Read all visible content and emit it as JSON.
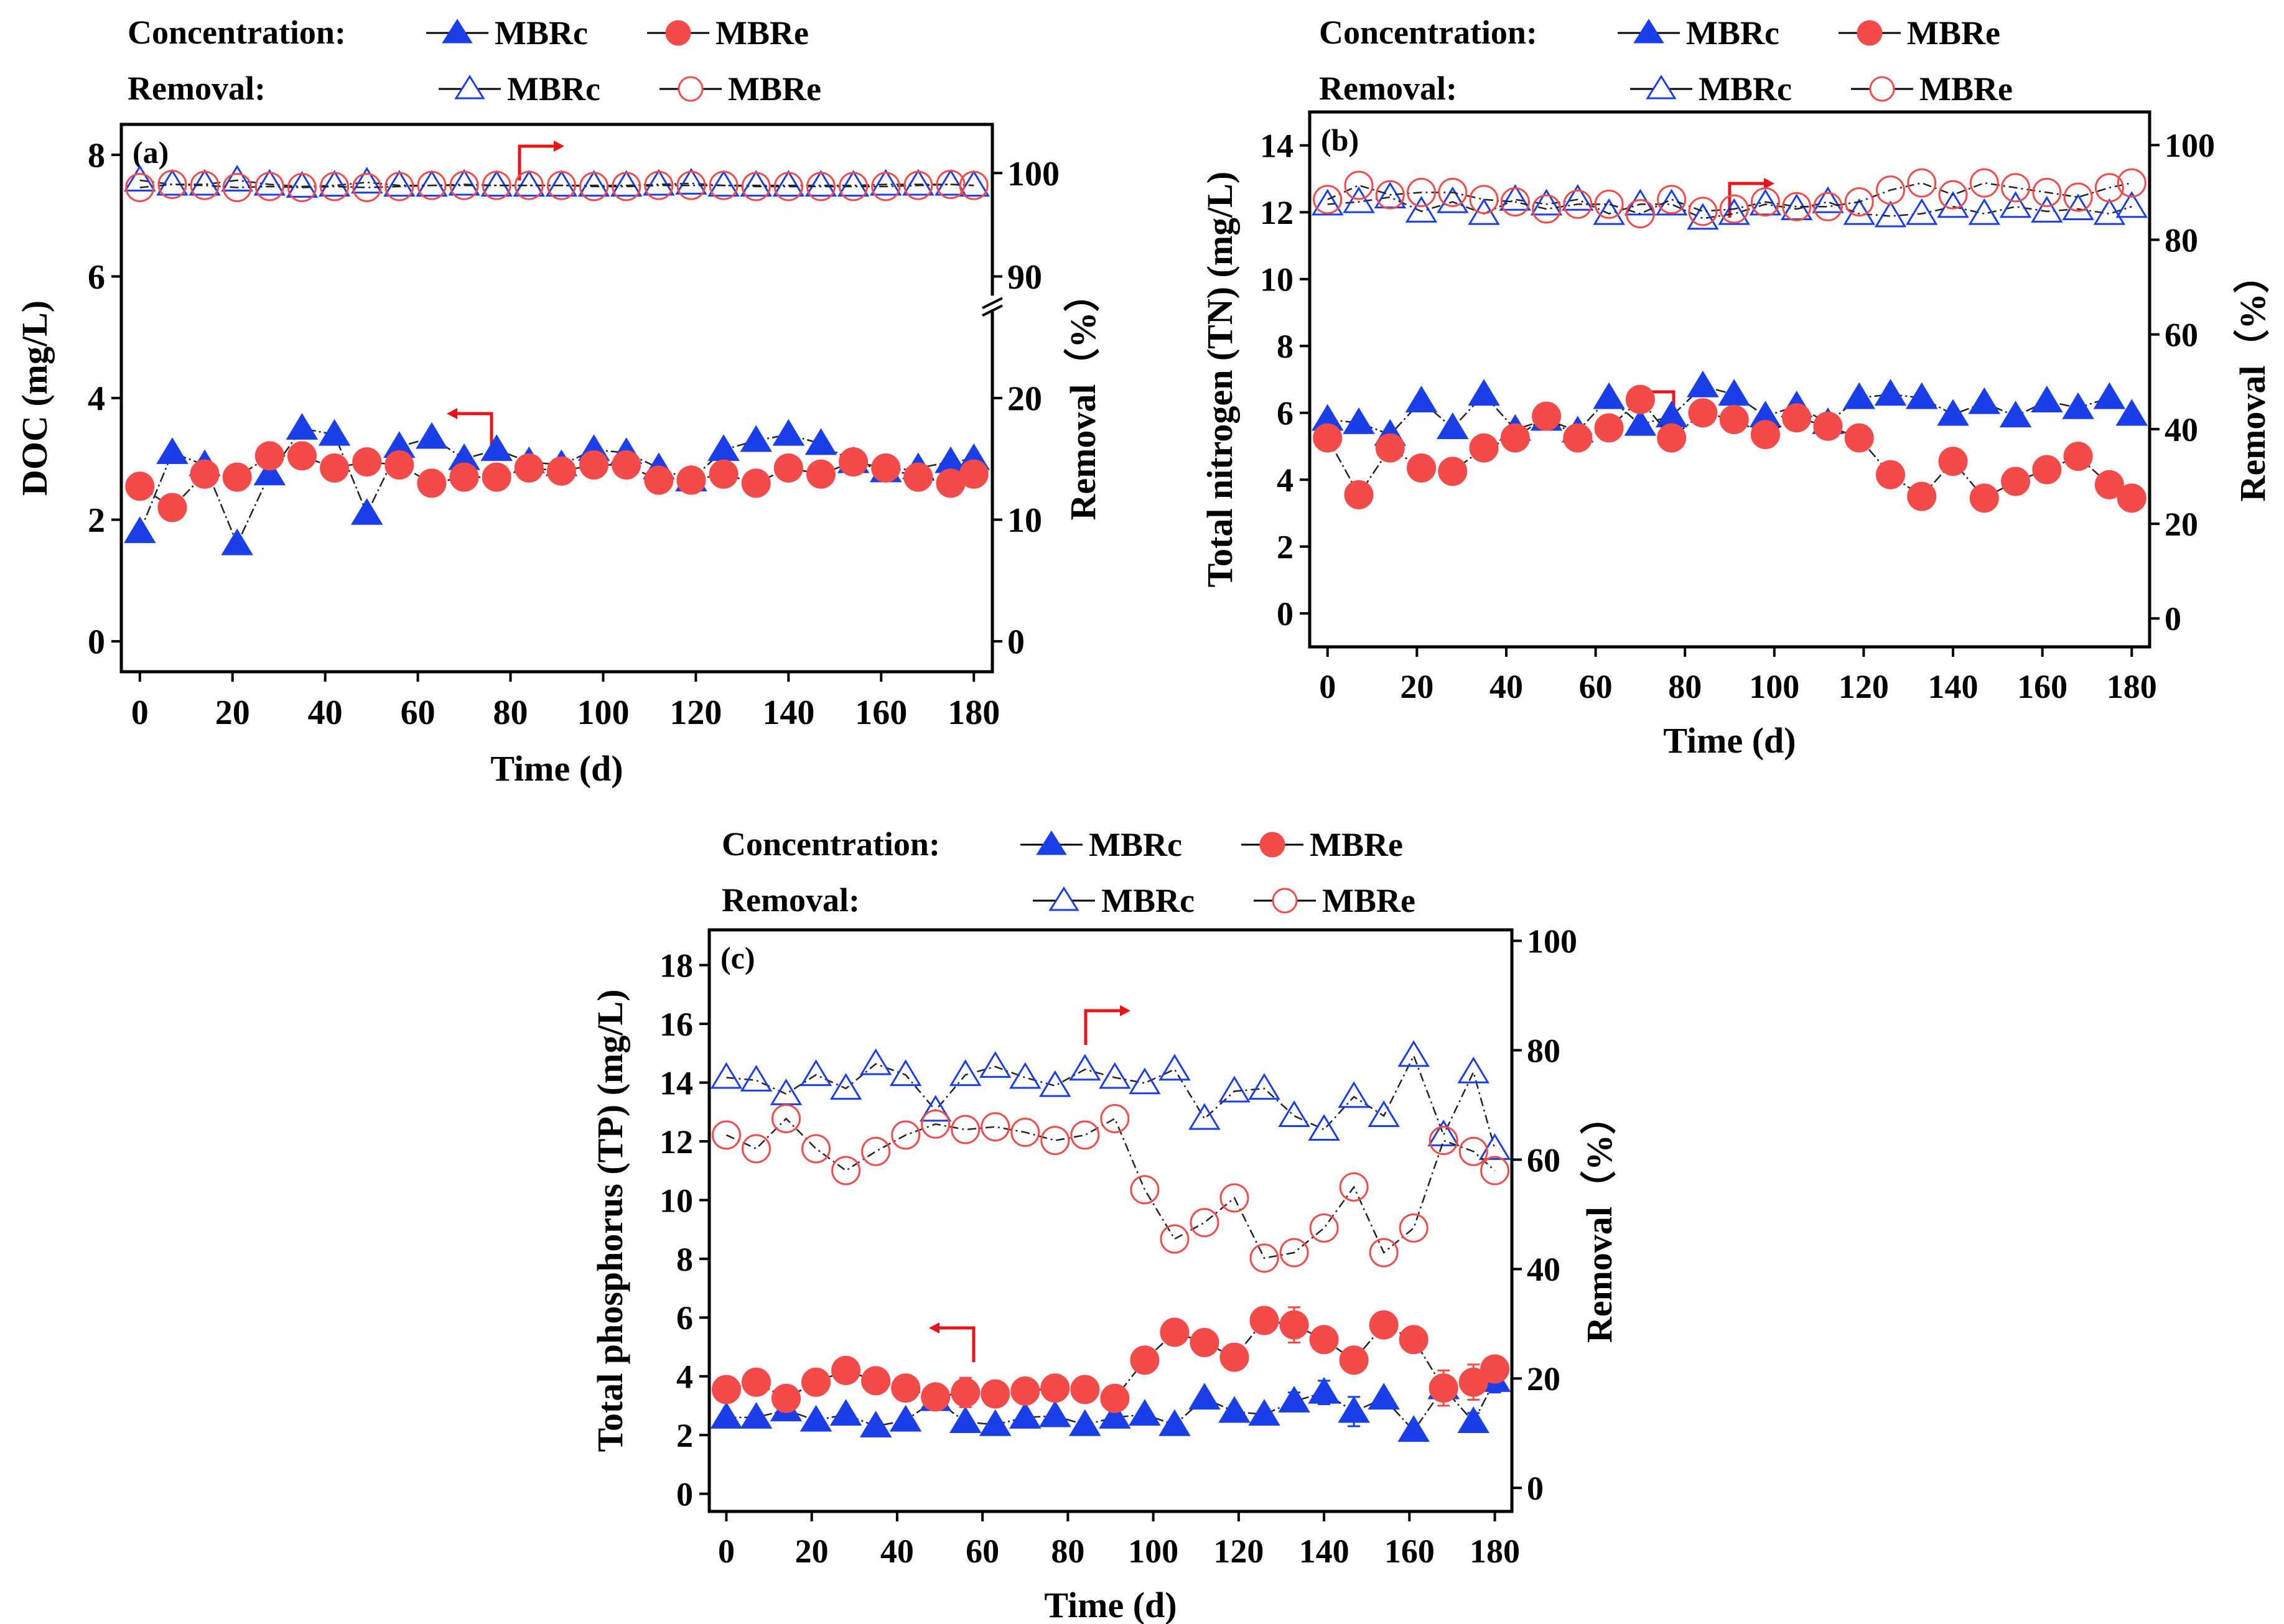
{
  "chart_data": [
    {
      "type": "line",
      "panel_label": "(a)",
      "xlabel": "Time (d)",
      "ylabel": "DOC (mg/L)",
      "y2label": "Removal（%）",
      "x_ticks": [
        0,
        20,
        40,
        60,
        80,
        100,
        120,
        140,
        160,
        180
      ],
      "xlim": [
        -4,
        184
      ],
      "y_ticks": [
        0,
        2,
        4,
        6,
        8
      ],
      "ylim": [
        -0.5,
        8.5
      ],
      "y2_broken": true,
      "y2_ticks_lower": [
        0,
        10,
        20
      ],
      "y2_ticks_upper": [
        90,
        100
      ],
      "legend": {
        "concentration_label": "Concentration:",
        "removal_label": "Removal:",
        "entries": [
          "MBRc",
          "MBRe"
        ]
      },
      "x": [
        0,
        7,
        14,
        21,
        28,
        35,
        42,
        49,
        56,
        63,
        70,
        77,
        84,
        91,
        98,
        105,
        112,
        119,
        126,
        133,
        140,
        147,
        154,
        161,
        168,
        175,
        180
      ],
      "series": [
        {
          "name": "MBRc concentration",
          "axis": "left",
          "marker": "filled-triangle",
          "color": "#1a3fe8",
          "values": [
            1.8,
            3.1,
            2.9,
            1.6,
            2.75,
            3.5,
            3.4,
            2.1,
            3.2,
            3.35,
            3.0,
            3.15,
            2.95,
            2.9,
            3.15,
            3.1,
            2.85,
            2.65,
            3.15,
            3.3,
            3.4,
            3.25,
            2.95,
            2.8,
            2.85,
            2.95,
            3.0
          ]
        },
        {
          "name": "MBRe concentration",
          "axis": "left",
          "marker": "filled-circle",
          "color": "#f44a4a",
          "values": [
            2.55,
            2.2,
            2.75,
            2.7,
            3.05,
            3.05,
            2.85,
            2.95,
            2.9,
            2.6,
            2.7,
            2.7,
            2.85,
            2.8,
            2.9,
            2.9,
            2.65,
            2.65,
            2.75,
            2.6,
            2.85,
            2.75,
            2.95,
            2.85,
            2.7,
            2.6,
            2.75
          ]
        },
        {
          "name": "MBRc removal",
          "axis": "right",
          "marker": "open-triangle",
          "color": "#1a3fe8",
          "values": [
            99.3,
            98.9,
            98.9,
            99.3,
            98.9,
            98.7,
            98.8,
            99.1,
            98.8,
            98.8,
            98.9,
            98.8,
            98.8,
            98.8,
            98.8,
            98.8,
            98.9,
            99.0,
            98.8,
            98.8,
            98.8,
            98.8,
            98.8,
            98.9,
            98.9,
            98.9,
            98.8
          ]
        },
        {
          "name": "MBRe removal",
          "axis": "right",
          "marker": "open-circle",
          "color": "#f44a4a",
          "values": [
            98.6,
            98.9,
            98.8,
            98.6,
            98.7,
            98.6,
            98.7,
            98.6,
            98.7,
            98.8,
            98.8,
            98.8,
            98.8,
            98.8,
            98.7,
            98.7,
            98.8,
            98.8,
            98.8,
            98.7,
            98.7,
            98.7,
            98.7,
            98.7,
            98.8,
            98.9,
            98.8
          ]
        }
      ]
    },
    {
      "type": "line",
      "panel_label": "(b)",
      "xlabel": "Time (d)",
      "ylabel": "Total nitrogen (TN) (mg/L)",
      "y2label": "Removal（%）",
      "x_ticks": [
        0,
        20,
        40,
        60,
        80,
        100,
        120,
        140,
        160,
        180
      ],
      "xlim": [
        -4,
        184
      ],
      "y_ticks": [
        0,
        2,
        4,
        6,
        8,
        10,
        12,
        14
      ],
      "ylim": [
        -1,
        15
      ],
      "y2_ticks": [
        0,
        20,
        40,
        60,
        80,
        100
      ],
      "y2lim": [
        -6,
        107
      ],
      "legend": {
        "concentration_label": "Concentration:",
        "removal_label": "Removal:",
        "entries": [
          "MBRc",
          "MBRe"
        ]
      },
      "x": [
        0,
        7,
        14,
        21,
        28,
        35,
        42,
        49,
        56,
        63,
        70,
        77,
        84,
        91,
        98,
        105,
        112,
        119,
        126,
        133,
        140,
        147,
        154,
        161,
        168,
        175,
        180
      ],
      "series": [
        {
          "name": "MBRc concentration",
          "axis": "left",
          "marker": "filled-triangle",
          "color": "#1a3fe8",
          "values": [
            5.8,
            5.7,
            5.35,
            6.35,
            5.55,
            6.55,
            5.5,
            5.8,
            5.45,
            6.45,
            5.65,
            5.9,
            6.8,
            6.55,
            5.9,
            6.2,
            5.7,
            6.45,
            6.55,
            6.45,
            5.95,
            6.3,
            5.9,
            6.35,
            6.15,
            6.45,
            5.95
          ]
        },
        {
          "name": "MBRe concentration",
          "axis": "left",
          "marker": "filled-circle",
          "color": "#f44a4a",
          "values": [
            5.25,
            3.55,
            4.95,
            4.35,
            4.25,
            4.95,
            5.25,
            5.9,
            5.25,
            5.55,
            6.4,
            5.25,
            6.0,
            5.8,
            5.35,
            5.85,
            5.6,
            5.25,
            4.15,
            3.5,
            4.55,
            3.45,
            3.95,
            4.3,
            4.7,
            3.85,
            3.45
          ]
        },
        {
          "name": "MBRc removal",
          "axis": "right",
          "marker": "open-triangle",
          "color": "#1a3fe8",
          "values": [
            87.5,
            88,
            89,
            86,
            88,
            85.5,
            88.5,
            87.5,
            88.5,
            85.5,
            87.5,
            87.5,
            84.5,
            85.5,
            87.5,
            86.5,
            88,
            85.5,
            85,
            85.5,
            87,
            85.5,
            87,
            86,
            86.5,
            85.5,
            87
          ]
        },
        {
          "name": "MBRe removal",
          "axis": "right",
          "marker": "open-circle",
          "color": "#f44a4a",
          "values": [
            88.5,
            91.5,
            89.5,
            90,
            90,
            88.5,
            88,
            86.5,
            87.5,
            87.5,
            85.5,
            88.5,
            86,
            86.5,
            88,
            87,
            87,
            88,
            90.5,
            92,
            89.5,
            92,
            91,
            90,
            89,
            91,
            92
          ]
        }
      ]
    },
    {
      "type": "line",
      "panel_label": "(c)",
      "xlabel": "Time (d)",
      "ylabel": "Total phosphorus (TP) (mg/L)",
      "y2label": "Removal（%）",
      "x_ticks": [
        0,
        20,
        40,
        60,
        80,
        100,
        120,
        140,
        160,
        180
      ],
      "xlim": [
        -4,
        184
      ],
      "y_ticks": [
        0,
        2,
        4,
        6,
        8,
        10,
        12,
        14,
        16,
        18
      ],
      "ylim": [
        -0.6,
        19.2
      ],
      "y2_ticks": [
        0,
        20,
        40,
        60,
        80,
        100
      ],
      "y2lim": [
        -4.3,
        102
      ],
      "legend": {
        "concentration_label": "Concentration:",
        "removal_label": "Removal:",
        "entries": [
          "MBRc",
          "MBRe"
        ]
      },
      "x": [
        0,
        7,
        14,
        21,
        28,
        35,
        42,
        49,
        56,
        63,
        70,
        77,
        84,
        91,
        98,
        105,
        112,
        119,
        126,
        133,
        140,
        147,
        154,
        161,
        168,
        175,
        180
      ],
      "series": [
        {
          "name": "MBRc concentration",
          "axis": "left",
          "marker": "filled-triangle",
          "color": "#1a3fe8",
          "values": [
            2.6,
            2.6,
            2.85,
            2.5,
            2.7,
            2.3,
            2.5,
            3.2,
            2.45,
            2.35,
            2.6,
            2.65,
            2.35,
            2.6,
            2.7,
            2.35,
            3.25,
            2.8,
            2.7,
            3.15,
            3.45,
            2.8,
            3.25,
            2.15,
            3.6,
            2.45,
            3.85
          ],
          "error": [
            0,
            0,
            0.1,
            0,
            0,
            0,
            0,
            0.1,
            0,
            0,
            0,
            0,
            0,
            0,
            0,
            0,
            0,
            0,
            0,
            0.3,
            0.4,
            0.5,
            0,
            0,
            0.3,
            0.3,
            0.4
          ]
        },
        {
          "name": "MBRe concentration",
          "axis": "left",
          "marker": "filled-circle",
          "color": "#f44a4a",
          "values": [
            3.55,
            3.8,
            3.25,
            3.8,
            4.2,
            3.85,
            3.6,
            3.3,
            3.45,
            3.4,
            3.5,
            3.6,
            3.55,
            3.25,
            4.55,
            5.5,
            5.15,
            4.65,
            5.9,
            5.75,
            5.25,
            4.55,
            5.75,
            5.25,
            3.6,
            3.8,
            4.25
          ],
          "error": [
            0,
            0,
            0,
            0,
            0,
            0,
            0,
            0,
            0.5,
            0,
            0,
            0,
            0,
            0,
            0,
            0,
            0,
            0,
            0,
            0.6,
            0,
            0,
            0,
            0,
            0.6,
            0.6,
            0
          ]
        },
        {
          "name": "MBRc removal",
          "axis": "right",
          "marker": "open-triangle",
          "color": "#1a3fe8",
          "values": [
            75,
            74.5,
            72,
            75.5,
            73,
            77.5,
            75.5,
            69,
            75.5,
            77,
            75,
            73.5,
            76.5,
            75,
            74,
            76.5,
            67.5,
            72.5,
            73,
            68,
            65.5,
            71.5,
            68,
            79,
            64.5,
            76,
            62
          ]
        },
        {
          "name": "MBRe removal",
          "axis": "right",
          "marker": "open-circle",
          "color": "#f44a4a",
          "values": [
            64.5,
            62,
            67.5,
            62,
            58,
            61.5,
            64.5,
            66.5,
            65.5,
            66,
            65,
            63.5,
            64.5,
            67.5,
            54.5,
            45.5,
            48.5,
            53,
            42,
            43,
            47.5,
            55,
            43,
            47.5,
            63.5,
            61.5,
            58
          ]
        }
      ]
    }
  ]
}
